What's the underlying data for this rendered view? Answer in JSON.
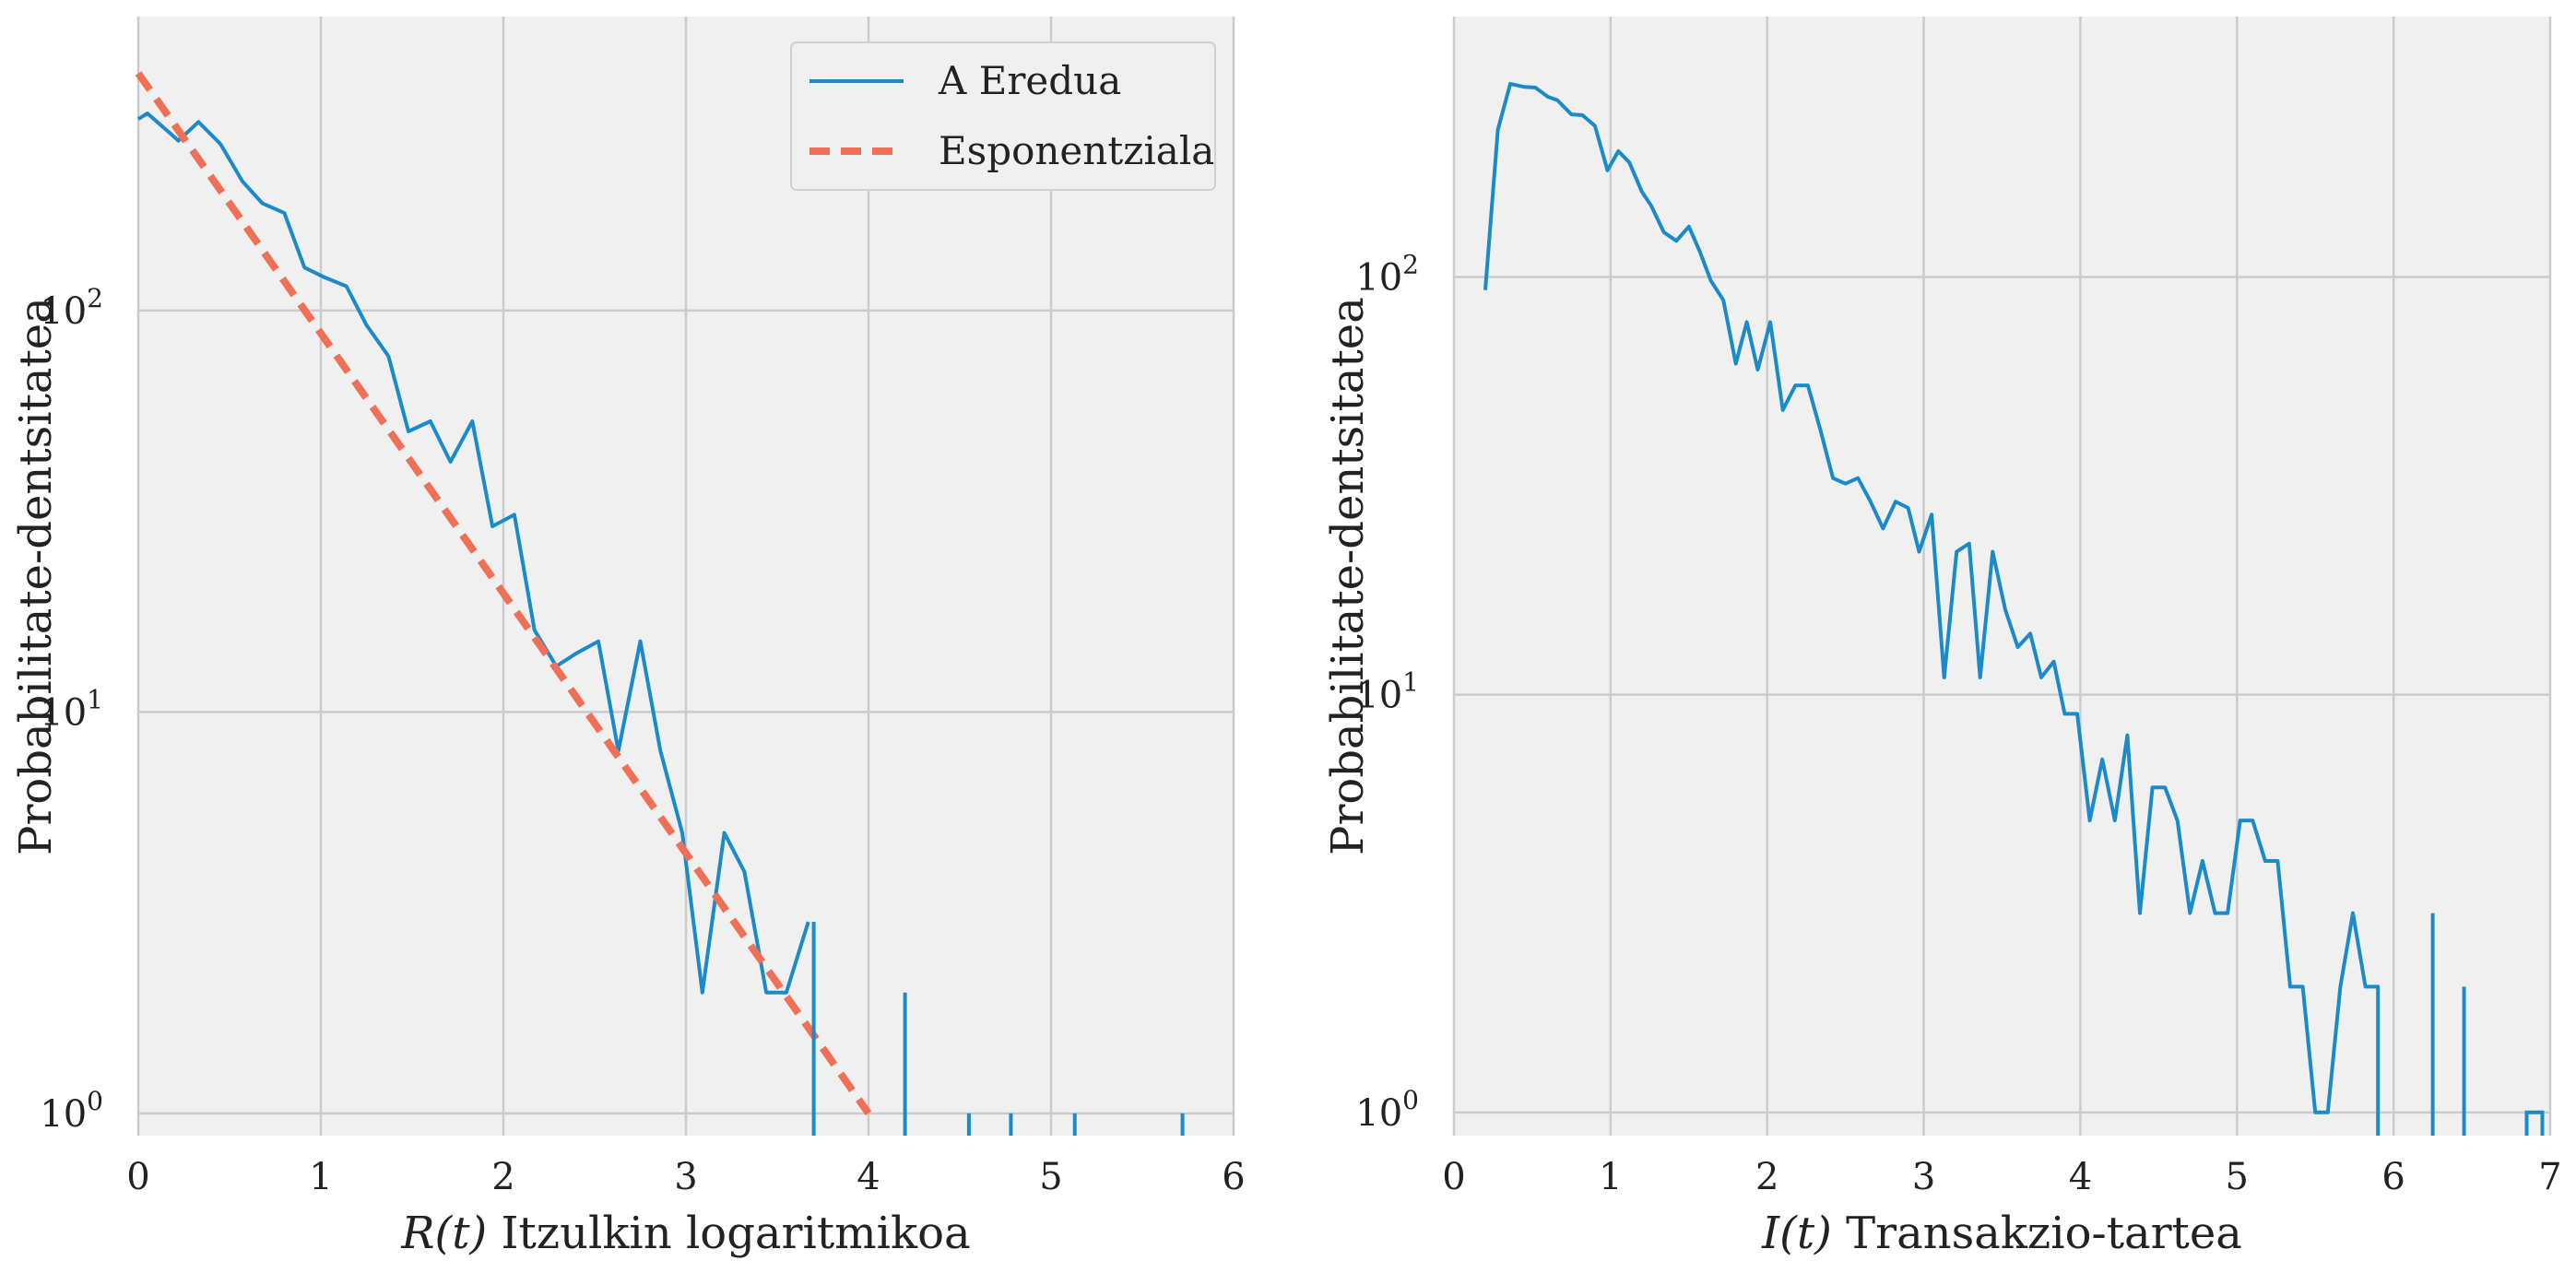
{
  "chart_data": [
    {
      "type": "line",
      "xlabel_var": "R(t)",
      "xlabel": "Itzulkin logaritmikoa",
      "ylabel": "Probabilitate-dentsitatea",
      "xlim": [
        0,
        6
      ],
      "ylim_log": [
        0.88,
        540
      ],
      "yscale": "log",
      "grid": true,
      "legend_position": "top-right",
      "xticks": [
        "0",
        "1",
        "2",
        "3",
        "4",
        "5",
        "6"
      ],
      "yticks": [
        {
          "v": 1,
          "label": "10^0"
        },
        {
          "v": 10,
          "label": "10^1"
        },
        {
          "v": 100,
          "label": "10^2"
        }
      ],
      "series": [
        {
          "name": "A Eredua",
          "style": "solid",
          "color": "#1a8acb",
          "points": [
            [
              0.0,
              300
            ],
            [
              0.05,
              310
            ],
            [
              0.22,
              265
            ],
            [
              0.33,
              295
            ],
            [
              0.45,
              260
            ],
            [
              0.57,
              210
            ],
            [
              0.68,
              185
            ],
            [
              0.8,
              175
            ],
            [
              0.91,
              128
            ],
            [
              1.02,
              121
            ],
            [
              1.14,
              115
            ],
            [
              1.25,
              92
            ],
            [
              1.37,
              77
            ],
            [
              1.48,
              50
            ],
            [
              1.6,
              53
            ],
            [
              1.71,
              42
            ],
            [
              1.83,
              53
            ],
            [
              1.94,
              29
            ],
            [
              2.06,
              31
            ],
            [
              2.17,
              16
            ],
            [
              2.29,
              13
            ],
            [
              2.4,
              14
            ],
            [
              2.52,
              15
            ],
            [
              2.63,
              8
            ],
            [
              2.75,
              15
            ],
            [
              2.86,
              8
            ],
            [
              2.98,
              5
            ],
            [
              3.09,
              2
            ],
            [
              3.21,
              5
            ],
            [
              3.32,
              4
            ],
            [
              3.44,
              2
            ],
            [
              3.55,
              2
            ],
            [
              3.67,
              3
            ]
          ]
        },
        {
          "name": "Esponentziala",
          "style": "dashed",
          "color": "#f07057",
          "points": [
            [
              0.0,
              390
            ],
            [
              4.0,
              1.0
            ]
          ]
        }
      ],
      "spikes": [
        {
          "x": 3.7,
          "y": 3
        },
        {
          "x": 4.2,
          "y": 2
        },
        {
          "x": 4.55,
          "y": 1
        },
        {
          "x": 4.78,
          "y": 1
        },
        {
          "x": 5.13,
          "y": 1
        },
        {
          "x": 5.72,
          "y": 1
        }
      ]
    },
    {
      "type": "line",
      "xlabel_var": "I(t)",
      "xlabel": "Transakzio-tartea",
      "ylabel": "Probabilitate-dentsitatea",
      "xlim": [
        0,
        7
      ],
      "ylim_log": [
        0.88,
        420
      ],
      "yscale": "log",
      "grid": true,
      "xticks": [
        "0",
        "1",
        "2",
        "3",
        "4",
        "5",
        "6",
        "7"
      ],
      "yticks": [
        {
          "v": 1,
          "label": "10^0"
        },
        {
          "v": 10,
          "label": "10^1"
        },
        {
          "v": 100,
          "label": "10^2"
        }
      ],
      "series": [
        {
          "style": "solid",
          "color": "#1a8acb",
          "points": [
            [
              0.2,
              93
            ],
            [
              0.28,
              225
            ],
            [
              0.36,
              290
            ],
            [
              0.45,
              285
            ],
            [
              0.52,
              284
            ],
            [
              0.6,
              270
            ],
            [
              0.66,
              265
            ],
            [
              0.75,
              245
            ],
            [
              0.82,
              244
            ],
            [
              0.9,
              230
            ],
            [
              0.98,
              180
            ],
            [
              1.05,
              200
            ],
            [
              1.12,
              188
            ],
            [
              1.2,
              160
            ],
            [
              1.26,
              148
            ],
            [
              1.34,
              128
            ],
            [
              1.42,
              122
            ],
            [
              1.5,
              132
            ],
            [
              1.57,
              115
            ],
            [
              1.64,
              98
            ],
            [
              1.72,
              88
            ],
            [
              1.8,
              62
            ],
            [
              1.87,
              78
            ],
            [
              1.94,
              60
            ],
            [
              2.02,
              78
            ],
            [
              2.1,
              48
            ],
            [
              2.18,
              55
            ],
            [
              2.26,
              55
            ],
            [
              2.34,
              43
            ],
            [
              2.42,
              33
            ],
            [
              2.5,
              32
            ],
            [
              2.58,
              33
            ],
            [
              2.66,
              29
            ],
            [
              2.74,
              25
            ],
            [
              2.82,
              29
            ],
            [
              2.9,
              28
            ],
            [
              2.97,
              22
            ],
            [
              3.05,
              27
            ],
            [
              3.13,
              11
            ],
            [
              3.21,
              22
            ],
            [
              3.29,
              23
            ],
            [
              3.36,
              11
            ],
            [
              3.44,
              22
            ],
            [
              3.52,
              16
            ],
            [
              3.6,
              13
            ],
            [
              3.68,
              14
            ],
            [
              3.75,
              11
            ],
            [
              3.83,
              12
            ],
            [
              3.9,
              9
            ],
            [
              3.98,
              9
            ],
            [
              4.06,
              5
            ],
            [
              4.14,
              7
            ],
            [
              4.22,
              5
            ],
            [
              4.3,
              8
            ],
            [
              4.38,
              3
            ],
            [
              4.46,
              6
            ],
            [
              4.54,
              6
            ],
            [
              4.62,
              5
            ],
            [
              4.7,
              3
            ],
            [
              4.78,
              4
            ],
            [
              4.86,
              3
            ],
            [
              4.94,
              3
            ],
            [
              5.02,
              5
            ],
            [
              5.1,
              5
            ],
            [
              5.18,
              4
            ],
            [
              5.26,
              4
            ],
            [
              5.34,
              2
            ],
            [
              5.42,
              2
            ],
            [
              5.5,
              1
            ],
            [
              5.58,
              1
            ],
            [
              5.66,
              2
            ],
            [
              5.74,
              3
            ],
            [
              5.82,
              2
            ],
            [
              5.9,
              2
            ],
            [
              5.9,
              0.88
            ]
          ]
        }
      ],
      "spikes": [
        {
          "x": 6.25,
          "y": 3
        },
        {
          "x": 6.45,
          "y": 2
        }
      ],
      "tail": [
        [
          6.85,
          0.88
        ],
        [
          6.85,
          1.0
        ],
        [
          6.95,
          1.0
        ],
        [
          6.95,
          0.88
        ]
      ]
    }
  ]
}
